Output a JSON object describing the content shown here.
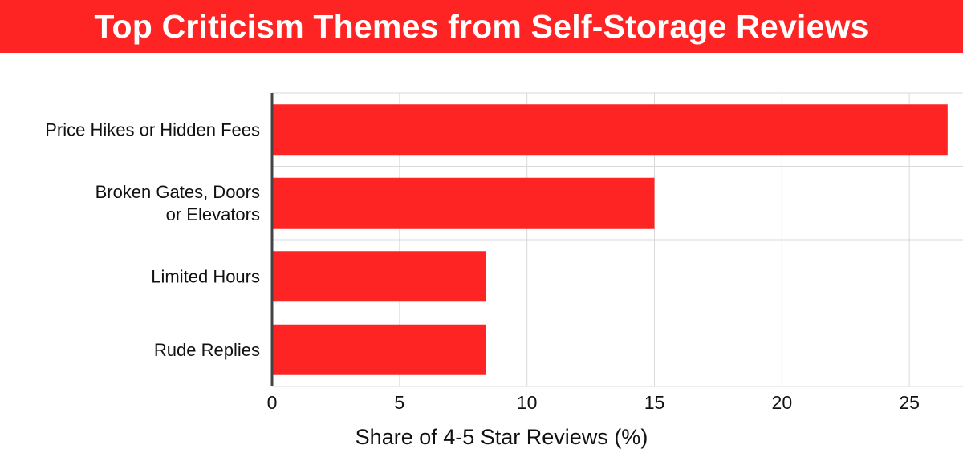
{
  "title": "Top Criticism Themes from Self-Storage Reviews",
  "colors": {
    "accent": "#ff2424",
    "grid": "#d9d9d9",
    "axis": "#444444",
    "text": "#111111"
  },
  "chart_data": {
    "type": "bar",
    "orientation": "horizontal",
    "title": "Top Criticism Themes from Self-Storage Reviews",
    "xlabel": "Share of 4-5 Star Reviews (%)",
    "ylabel": "",
    "categories": [
      [
        "Price Hikes or Hidden Fees"
      ],
      [
        "Broken Gates, Doors",
        "or Elevators"
      ],
      [
        "Limited Hours"
      ],
      [
        "Rude Replies"
      ]
    ],
    "values": [
      26.5,
      15.0,
      8.4,
      8.4
    ],
    "xlim": [
      0,
      26.6
    ],
    "xticks": [
      0,
      5,
      10,
      15,
      20,
      25
    ],
    "grid": true,
    "legend": "none"
  }
}
